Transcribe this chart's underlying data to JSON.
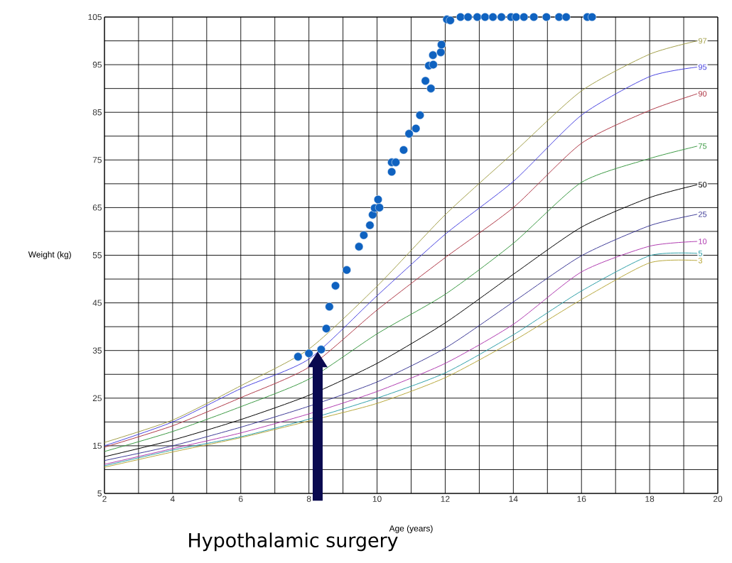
{
  "chart_data": {
    "type": "line",
    "xlabel": "Age (years)",
    "ylabel": "Weight (kg)",
    "xlim": [
      2,
      20
    ],
    "ylim": [
      5,
      105
    ],
    "xticks": [
      2,
      4,
      6,
      8,
      10,
      12,
      14,
      16,
      18,
      20
    ],
    "yticks": [
      5,
      15,
      25,
      35,
      45,
      55,
      65,
      75,
      85,
      95,
      105
    ],
    "grid": true,
    "x": [
      2,
      4,
      6,
      8,
      10,
      12,
      14,
      16,
      18,
      19.4
    ],
    "series": [
      {
        "name": "97",
        "color": "#a3a04a",
        "values": [
          15.7,
          20.4,
          27.6,
          35.3,
          48.5,
          63.5,
          76.5,
          89.5,
          97.2,
          100.0
        ]
      },
      {
        "name": "95",
        "color": "#4a45e0",
        "values": [
          15.0,
          20.0,
          27.0,
          33.2,
          46.5,
          59.4,
          70.5,
          84.4,
          92.5,
          94.5
        ]
      },
      {
        "name": "90",
        "color": "#b03a48",
        "values": [
          14.7,
          19.2,
          25.1,
          31.5,
          43.5,
          54.5,
          65.0,
          78.5,
          85.4,
          88.9
        ]
      },
      {
        "name": "75",
        "color": "#3c9a44",
        "values": [
          13.8,
          18.0,
          23.2,
          29.0,
          38.5,
          46.8,
          57.5,
          70.3,
          75.3,
          77.9
        ]
      },
      {
        "name": "50",
        "color": "#000000",
        "values": [
          12.7,
          16.2,
          20.5,
          25.6,
          32.3,
          40.8,
          51.0,
          60.9,
          67.1,
          69.8
        ]
      },
      {
        "name": "25",
        "color": "#3f3c98",
        "values": [
          11.9,
          15.0,
          18.9,
          23.3,
          28.4,
          35.5,
          45.2,
          54.9,
          61.2,
          63.6
        ]
      },
      {
        "name": "10",
        "color": "#b03cb0",
        "values": [
          11.1,
          14.4,
          17.7,
          21.7,
          26.4,
          32.3,
          40.5,
          51.5,
          56.9,
          57.9
        ]
      },
      {
        "name": "5",
        "color": "#2fa0a8",
        "values": [
          10.8,
          14.1,
          16.9,
          20.6,
          25.0,
          30.3,
          38.3,
          47.5,
          54.9,
          55.4
        ]
      },
      {
        "name": "3",
        "color": "#b8a83c",
        "values": [
          10.5,
          13.7,
          16.7,
          20.2,
          23.9,
          29.3,
          37.0,
          45.7,
          53.4,
          53.9
        ]
      },
      {
        "type": "scatter",
        "marker": "circle",
        "color": "#0f62c0",
        "x": [
          7.68,
          8.0,
          8.36,
          8.51,
          8.6,
          8.78,
          9.11,
          9.47,
          9.61,
          9.79,
          9.87,
          9.93,
          10.03,
          10.07,
          10.43,
          10.43,
          10.55,
          10.78,
          10.94,
          11.14,
          11.26,
          11.42,
          11.52,
          11.58,
          11.64,
          11.65,
          11.87,
          11.89,
          12.05,
          12.15,
          12.45,
          12.67,
          12.94,
          13.17,
          13.4,
          13.65,
          13.93,
          14.08,
          14.31,
          14.6,
          14.97,
          15.34,
          15.55,
          16.17,
          16.31
        ],
        "values": [
          33.7,
          34.4,
          35.2,
          39.6,
          44.2,
          48.6,
          51.9,
          56.8,
          59.2,
          61.3,
          63.5,
          64.9,
          66.7,
          65.0,
          72.5,
          74.5,
          74.5,
          77.1,
          80.5,
          81.6,
          84.4,
          91.6,
          94.8,
          90.0,
          97.0,
          95.0,
          97.6,
          99.2,
          104.5,
          104.3,
          105,
          105,
          105,
          105,
          105,
          105,
          105,
          105,
          105,
          105,
          105,
          105,
          105,
          105,
          105
        ]
      }
    ],
    "annotations": [
      "Hypothalamic surgery"
    ]
  }
}
